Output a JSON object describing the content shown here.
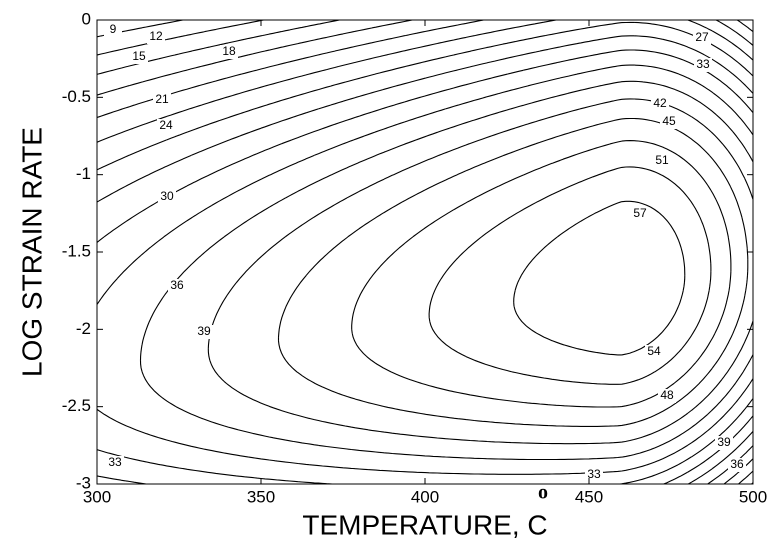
{
  "chart_data": {
    "type": "contour",
    "xlabel": "TEMPERATURE,  C",
    "xlabel_degree": "o",
    "ylabel": "LOG STRAIN RATE",
    "xlim": [
      300,
      500
    ],
    "xticks": [
      300,
      350,
      400,
      450,
      500
    ],
    "ylim": [
      -3,
      0
    ],
    "yticks": [
      0,
      -0.5,
      -1,
      -1.5,
      -2,
      -2.5,
      -3
    ],
    "levels": [
      9,
      12,
      15,
      18,
      21,
      24,
      27,
      30,
      33,
      36,
      39,
      42,
      45,
      48,
      51,
      54,
      57
    ],
    "contour_labels": [
      9,
      12,
      15,
      18,
      27,
      33,
      21,
      42,
      24,
      45,
      51,
      30,
      57,
      36,
      39,
      54,
      48,
      39,
      33,
      36,
      33
    ],
    "color": "#000000"
  }
}
